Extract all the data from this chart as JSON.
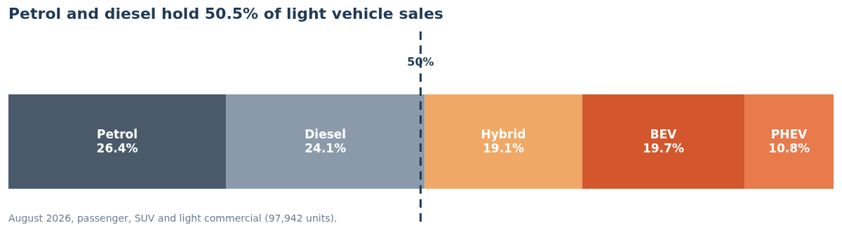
{
  "chart_data": {
    "type": "bar",
    "orientation": "horizontal",
    "stacked": true,
    "title": "Petrol and diesel hold 50.5% of light vehicle sales",
    "categories": [
      null
    ],
    "xlim": [
      0,
      100.1
    ],
    "tick_labels": false,
    "series": [
      {
        "name": "Petrol",
        "color": "#4a5a6b",
        "values": [
          26.4
        ],
        "value_labels": [
          "26.4%"
        ]
      },
      {
        "name": "Diesel",
        "color": "#8a9aab",
        "values": [
          24.1
        ],
        "value_labels": [
          "24.1%"
        ]
      },
      {
        "name": "Hybrid",
        "color": "#f0a866",
        "values": [
          19.1
        ],
        "value_labels": [
          "19.1%"
        ]
      },
      {
        "name": "BEV",
        "color": "#d4562d",
        "values": [
          19.7
        ],
        "value_labels": [
          "19.7%"
        ]
      },
      {
        "name": "PHEV",
        "color": "#e87a4b",
        "values": [
          10.8
        ],
        "value_labels": [
          "10.8%"
        ]
      }
    ],
    "ref_lines": [
      {
        "axis": "x",
        "value": 50,
        "label": "50%",
        "color": "#1f3a55",
        "line_style": "dashed"
      }
    ],
    "annotations": [
      "August 2026, passenger, SUV and light commercial (97,942 units)."
    ]
  }
}
